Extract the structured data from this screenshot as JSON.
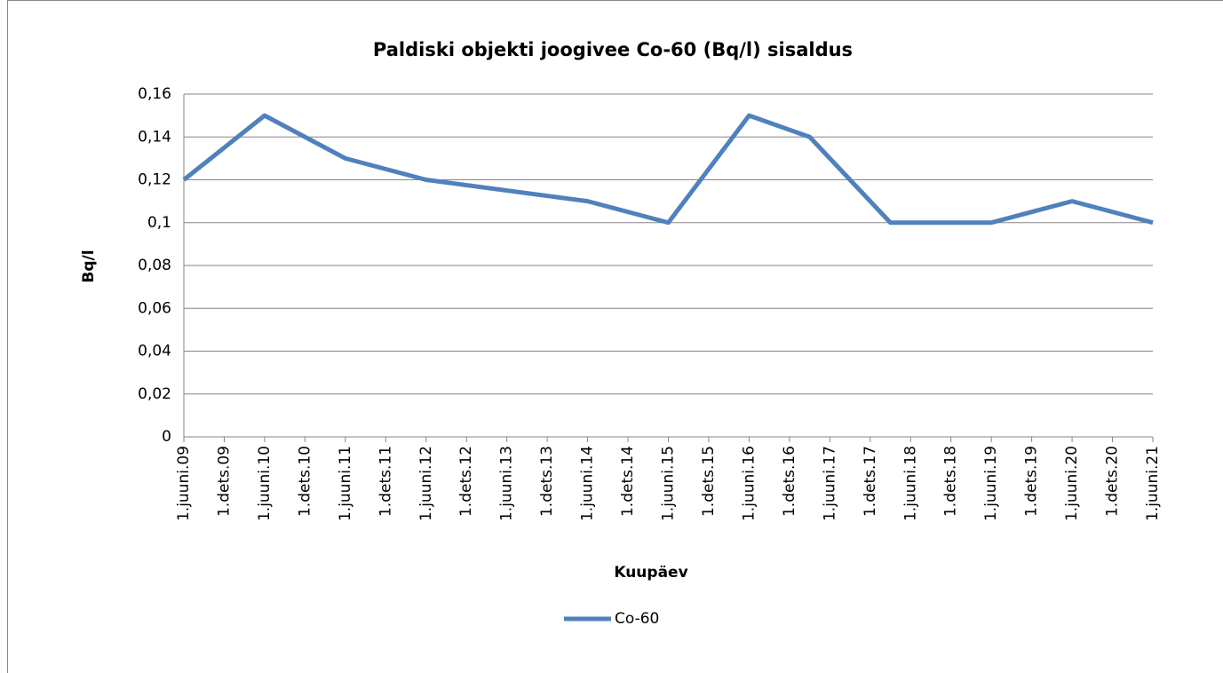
{
  "chart_data": {
    "type": "line",
    "title": "Paldiski objekti joogivee Co-60 (Bq/l) sisaldus",
    "x_label": "Kuupäev",
    "y_label": "Bq/l",
    "x": [
      0,
      12,
      24,
      36,
      60,
      72,
      84,
      93,
      105,
      120,
      132,
      144
    ],
    "series": [
      {
        "name": "Co-60",
        "color": "#4f81bd",
        "values": [
          0.12,
          0.15,
          0.13,
          0.12,
          0.11,
          0.1,
          0.15,
          0.14,
          0.1,
          0.1,
          0.11,
          0.1
        ]
      }
    ],
    "xlim": [
      0,
      144
    ],
    "xticks": [
      {
        "value": 0,
        "label": "1.juuni.09"
      },
      {
        "value": 6,
        "label": "1.dets.09"
      },
      {
        "value": 12,
        "label": "1.juuni.10"
      },
      {
        "value": 18,
        "label": "1.dets.10"
      },
      {
        "value": 24,
        "label": "1.juuni.11"
      },
      {
        "value": 30,
        "label": "1.dets.11"
      },
      {
        "value": 36,
        "label": "1.juuni.12"
      },
      {
        "value": 42,
        "label": "1.dets.12"
      },
      {
        "value": 48,
        "label": "1.juuni.13"
      },
      {
        "value": 54,
        "label": "1.dets.13"
      },
      {
        "value": 60,
        "label": "1.juuni.14"
      },
      {
        "value": 66,
        "label": "1.dets.14"
      },
      {
        "value": 72,
        "label": "1.juuni.15"
      },
      {
        "value": 78,
        "label": "1.dets.15"
      },
      {
        "value": 84,
        "label": "1.juuni.16"
      },
      {
        "value": 90,
        "label": "1.dets.16"
      },
      {
        "value": 96,
        "label": "1.juuni.17"
      },
      {
        "value": 102,
        "label": "1.dets.17"
      },
      {
        "value": 108,
        "label": "1.juuni.18"
      },
      {
        "value": 114,
        "label": "1.dets.18"
      },
      {
        "value": 120,
        "label": "1.juuni.19"
      },
      {
        "value": 126,
        "label": "1.dets.19"
      },
      {
        "value": 132,
        "label": "1.juuni.20"
      },
      {
        "value": 138,
        "label": "1.dets.20"
      },
      {
        "value": 144,
        "label": "1.juuni.21"
      }
    ],
    "ylim": [
      0,
      0.16
    ],
    "yticks": [
      0,
      {
        "value": 0.02,
        "label": "0,02"
      },
      {
        "value": 0.04,
        "label": "0,04"
      },
      {
        "value": 0.06,
        "label": "0,06"
      },
      {
        "value": 0.08,
        "label": "0,08"
      },
      {
        "value": 0.1,
        "label": "0,1"
      },
      {
        "value": 0.12,
        "label": "0,12"
      },
      {
        "value": 0.14,
        "label": "0,14"
      },
      {
        "value": 0.16,
        "label": "0,16"
      }
    ],
    "grid": true,
    "legend": "bottom"
  }
}
